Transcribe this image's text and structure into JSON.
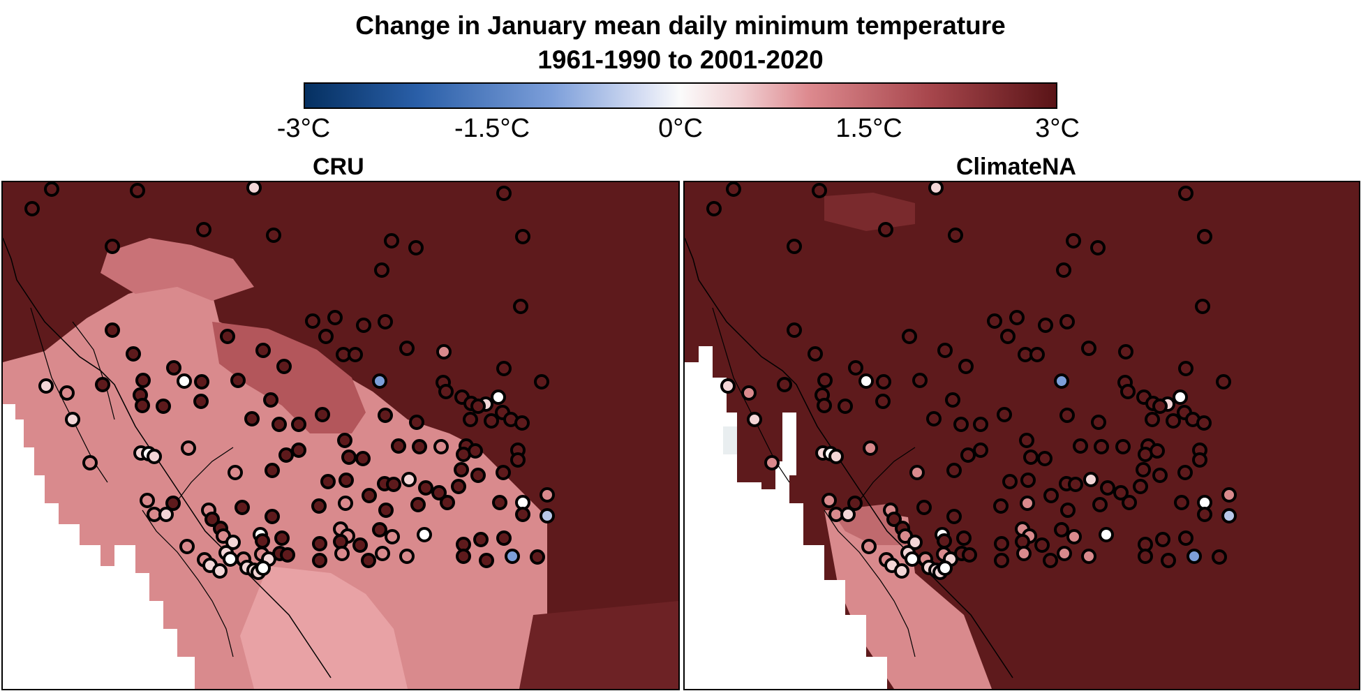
{
  "title": {
    "line1": "Change in January mean daily minimum temperature",
    "line2": "1961-1990 to 2001-2020"
  },
  "colorbar": {
    "ticks": [
      "-3°C",
      "-1.5°C",
      "0°C",
      "1.5°C",
      "3°C"
    ],
    "range": [
      -3,
      3
    ],
    "colors": {
      "min": "#053061",
      "neg_mid": "#7d9fda",
      "zero": "#fbfbfb",
      "pos_mid": "#dd8a8f",
      "max": "#5a1417"
    }
  },
  "panels": [
    {
      "id": "cru",
      "label": "CRU"
    },
    {
      "id": "climatena",
      "label": "ClimateNA"
    }
  ],
  "map_colors": {
    "background_warming": "#5e1a1c",
    "moderate_warming": "#d98a8d",
    "ocean": "#ffffff",
    "station_outline": "#000000",
    "coastline": "#000000"
  }
}
